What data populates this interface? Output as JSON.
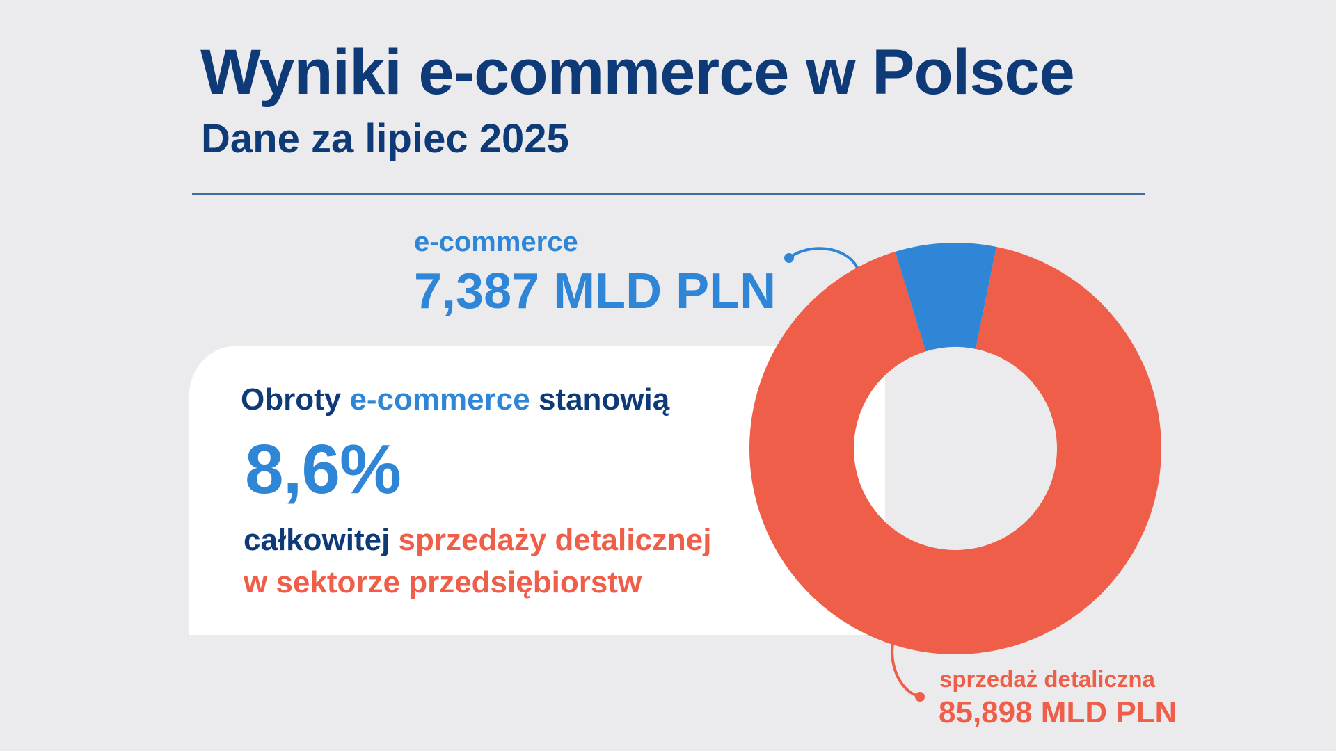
{
  "header": {
    "title": "Wyniki e-commerce w Polsce",
    "subtitle": "Dane za lipiec 2025"
  },
  "card": {
    "line1_part1": "Obroty ",
    "line1_part2": "e-commerce",
    "line1_part3": " stanowią",
    "share_value": "8,6%",
    "line3_part1": "całkowitej ",
    "line3_part2": "sprzedaży detalicznej",
    "line4": "w sektorze przedsiębiorstw"
  },
  "callouts": {
    "ecommerce_label": "e-commerce",
    "ecommerce_value": "7,387 MLD PLN",
    "retail_label": "sprzedaż detaliczna",
    "retail_value": "85,898 MLD PLN"
  },
  "colors": {
    "title": "#0e3a78",
    "ecommerce": "#2f86d6",
    "retail": "#ee5e48",
    "background": "#ebebed",
    "card": "#ffffff"
  },
  "chart_data": {
    "type": "pie",
    "donut": true,
    "categories": [
      "e-commerce",
      "sprzedaż detaliczna"
    ],
    "values": [
      7.387,
      85.898
    ],
    "units": "MLD PLN",
    "colors": [
      "#2f86d6",
      "#ee5e48"
    ],
    "start_angle_deg": 0
  }
}
